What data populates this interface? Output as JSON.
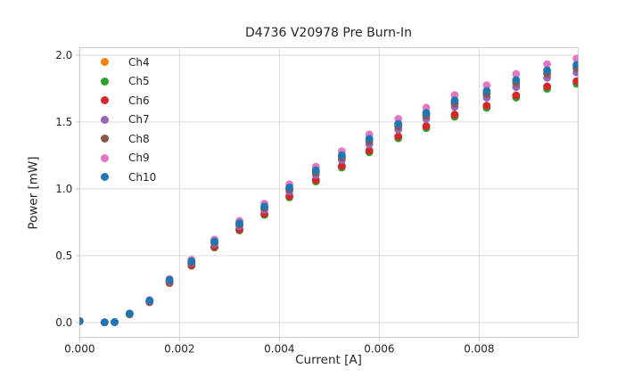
{
  "chart_data": {
    "type": "scatter",
    "title": "D4736 V20978 Pre Burn-In",
    "xlabel": "Current [A]",
    "ylabel": "Power [mW]",
    "xlim": [
      0.0,
      0.00998
    ],
    "ylim": [
      -0.112,
      2.057
    ],
    "grid": true,
    "legend_position": "upper left",
    "x_ticks": {
      "values": [
        0.0,
        0.002,
        0.004,
        0.006,
        0.008
      ],
      "labels": [
        "0.000",
        "0.002",
        "0.004",
        "0.006",
        "0.008"
      ]
    },
    "y_ticks": {
      "values": [
        0.0,
        0.5,
        1.0,
        1.5,
        2.0
      ],
      "labels": [
        "0.0",
        "0.5",
        "1.0",
        "1.5",
        "2.0"
      ]
    },
    "x": [
      0.0,
      0.0005,
      0.0007,
      0.001,
      0.0014,
      0.0018,
      0.00224,
      0.0027,
      0.0032,
      0.0037,
      0.0042,
      0.00473,
      0.00525,
      0.0058,
      0.00638,
      0.00694,
      0.00751,
      0.00815,
      0.00874,
      0.00936,
      0.00995
    ],
    "series": [
      {
        "name": "Ch4",
        "color": "#ff7f0e",
        "values": [
          0.01,
          0.002,
          0.003,
          0.066,
          0.162,
          0.315,
          0.454,
          0.6,
          0.736,
          0.86,
          1.0,
          1.127,
          1.238,
          1.36,
          1.472,
          1.553,
          1.644,
          1.715,
          1.797,
          1.868,
          1.908
        ]
      },
      {
        "name": "Ch5",
        "color": "#2ca02c",
        "values": [
          0.01,
          0.002,
          0.003,
          0.062,
          0.152,
          0.295,
          0.425,
          0.561,
          0.689,
          0.805,
          0.936,
          1.055,
          1.159,
          1.273,
          1.378,
          1.454,
          1.539,
          1.606,
          1.682,
          1.748,
          1.786
        ]
      },
      {
        "name": "Ch6",
        "color": "#d62728",
        "values": [
          0.01,
          0.002,
          0.003,
          0.062,
          0.154,
          0.298,
          0.429,
          0.567,
          0.696,
          0.813,
          0.946,
          1.066,
          1.171,
          1.286,
          1.392,
          1.469,
          1.555,
          1.622,
          1.699,
          1.766,
          1.805
        ]
      },
      {
        "name": "Ch7",
        "color": "#9467bd",
        "values": [
          0.01,
          0.002,
          0.003,
          0.065,
          0.159,
          0.308,
          0.445,
          0.588,
          0.721,
          0.843,
          0.98,
          1.104,
          1.214,
          1.333,
          1.443,
          1.522,
          1.612,
          1.682,
          1.761,
          1.831,
          1.871
        ]
      },
      {
        "name": "Ch8",
        "color": "#8c564b",
        "values": [
          0.01,
          0.002,
          0.003,
          0.066,
          0.162,
          0.314,
          0.452,
          0.598,
          0.734,
          0.857,
          0.997,
          1.123,
          1.235,
          1.356,
          1.467,
          1.548,
          1.639,
          1.71,
          1.791,
          1.862,
          1.903
        ]
      },
      {
        "name": "Ch9",
        "color": "#e377c2",
        "values": [
          0.01,
          0.002,
          0.003,
          0.068,
          0.168,
          0.326,
          0.469,
          0.621,
          0.761,
          0.889,
          1.034,
          1.166,
          1.281,
          1.407,
          1.523,
          1.607,
          1.701,
          1.775,
          1.859,
          1.932,
          1.974
        ]
      },
      {
        "name": "Ch10",
        "color": "#1f77b4",
        "values": [
          0.01,
          0.002,
          0.003,
          0.067,
          0.164,
          0.318,
          0.458,
          0.606,
          0.743,
          0.868,
          1.01,
          1.138,
          1.251,
          1.374,
          1.486,
          1.568,
          1.661,
          1.732,
          1.814,
          1.886,
          1.927
        ]
      }
    ],
    "marker_diameter_px": 8.8,
    "colors": {
      "grid": "#dcdcdc",
      "spine": "#c9c9c9",
      "tick": "#c9c9c9",
      "text": "#262626",
      "background": "#ffffff"
    }
  }
}
